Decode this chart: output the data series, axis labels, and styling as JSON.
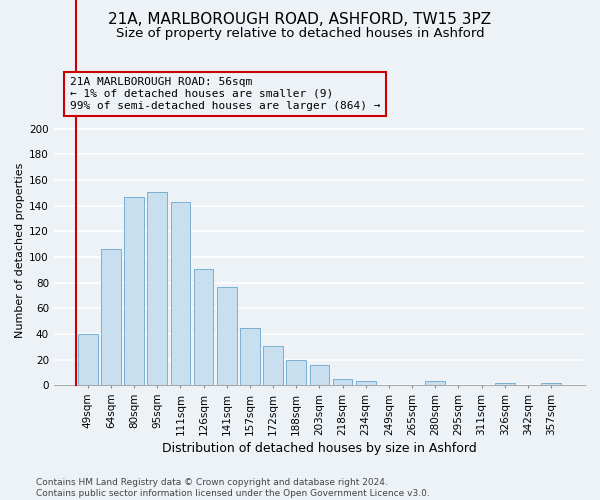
{
  "title": "21A, MARLBOROUGH ROAD, ASHFORD, TW15 3PZ",
  "subtitle": "Size of property relative to detached houses in Ashford",
  "xlabel": "Distribution of detached houses by size in Ashford",
  "ylabel": "Number of detached properties",
  "categories": [
    "49sqm",
    "64sqm",
    "80sqm",
    "95sqm",
    "111sqm",
    "126sqm",
    "141sqm",
    "157sqm",
    "172sqm",
    "188sqm",
    "203sqm",
    "218sqm",
    "234sqm",
    "249sqm",
    "265sqm",
    "280sqm",
    "295sqm",
    "311sqm",
    "326sqm",
    "342sqm",
    "357sqm"
  ],
  "values": [
    40,
    106,
    147,
    151,
    143,
    91,
    77,
    45,
    31,
    20,
    16,
    5,
    3,
    0,
    0,
    3,
    0,
    0,
    2,
    0,
    2
  ],
  "bar_color": "#c8dff0",
  "bar_edge_color": "#7ab0d4",
  "ylim": [
    0,
    210
  ],
  "yticks": [
    0,
    20,
    40,
    60,
    80,
    100,
    120,
    140,
    160,
    180,
    200
  ],
  "annotation_text_line1": "21A MARLBOROUGH ROAD: 56sqm",
  "annotation_text_line2": "← 1% of detached houses are smaller (9)",
  "annotation_text_line3": "99% of semi-detached houses are larger (864) →",
  "annotation_box_text": "21A MARLBOROUGH ROAD: 56sqm\n← 1% of detached houses are smaller (9)\n99% of semi-detached houses are larger (864) →",
  "red_line_color": "#cc0000",
  "footer_line1": "Contains HM Land Registry data © Crown copyright and database right 2024.",
  "footer_line2": "Contains public sector information licensed under the Open Government Licence v3.0.",
  "background_color": "#edf2f7",
  "title_fontsize": 11,
  "subtitle_fontsize": 9.5,
  "xlabel_fontsize": 9,
  "ylabel_fontsize": 8,
  "tick_fontsize": 7.5,
  "annotation_fontsize": 8,
  "footer_fontsize": 6.5
}
